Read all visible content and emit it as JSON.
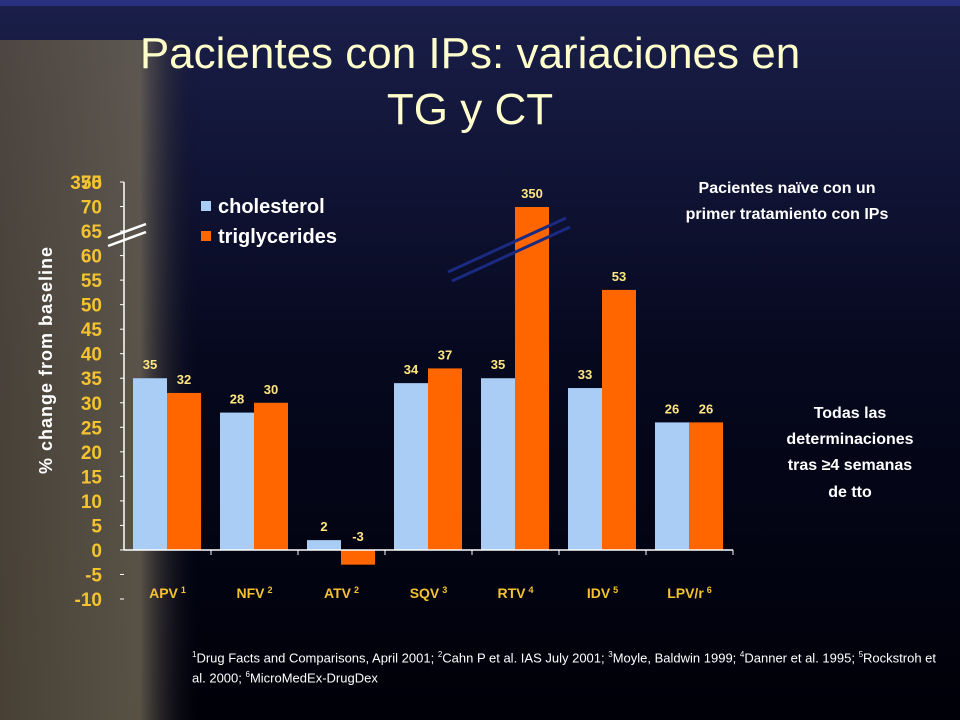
{
  "title_lines": [
    "Pacientes con IPs: variaciones en",
    "TG y CT"
  ],
  "chart_data": {
    "type": "bar",
    "ylabel": "% change from baseline",
    "categories": [
      "APV",
      "NFV",
      "ATV",
      "SQV",
      "RTV",
      "IDV",
      "LPV/r"
    ],
    "category_refs": [
      "1",
      "2",
      "2",
      "3",
      "4",
      "5",
      "6"
    ],
    "series": [
      {
        "name": "cholesterol",
        "color": "#a9cdf5",
        "values": [
          35,
          28,
          2,
          34,
          35,
          33,
          26
        ]
      },
      {
        "name": "triglycerides",
        "color": "#ff6600",
        "values": [
          32,
          30,
          -3,
          37,
          350,
          53,
          26
        ]
      }
    ],
    "ylim": [
      -10,
      75
    ],
    "yticks": [
      -10,
      -5,
      0,
      5,
      10,
      15,
      20,
      25,
      30,
      35,
      40,
      45,
      50,
      55,
      60,
      65,
      70,
      75,
      350
    ],
    "axis_break": true
  },
  "annotations": {
    "top_right": [
      "Pacientes naïve con un",
      "primer tratamiento con IPs"
    ],
    "middle_right": [
      "Todas las",
      "determinaciones",
      "tras ≥4 semanas",
      "de tto"
    ]
  },
  "footnotes": [
    {
      "num": "1",
      "text": "Drug Facts and Comparisons, April 2001;"
    },
    {
      "num": "2",
      "text": "Cahn P et al. IAS July 2001;"
    },
    {
      "num": "3",
      "text": "Moyle, Baldwin 1999;"
    },
    {
      "num": "4",
      "text": "Danner et al. 1995;"
    },
    {
      "num": "5",
      "text": "Rockstroh et al. 2000;"
    },
    {
      "num": "6",
      "text": "MicroMedEx-DrugDex"
    }
  ]
}
